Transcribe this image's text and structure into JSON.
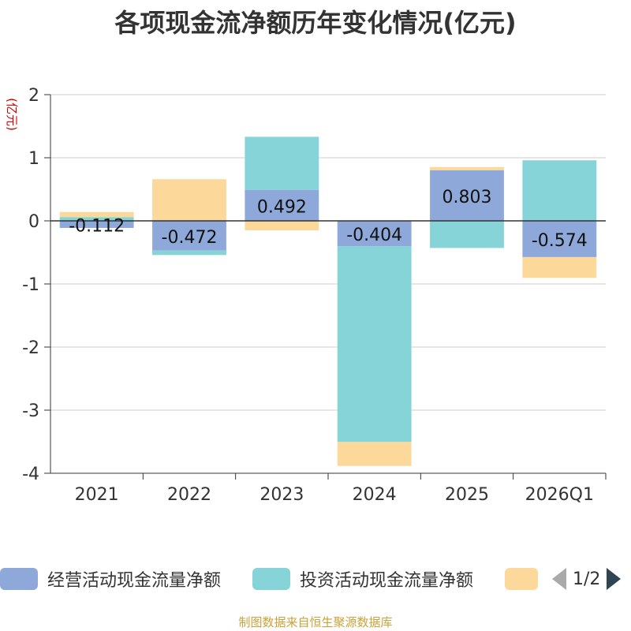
{
  "chart_data": {
    "type": "bar",
    "stacked": true,
    "title": "各项现金流净额历年变化情况(亿元)",
    "ylabel": "(亿元)",
    "xlabel": "",
    "ylim": [
      -4,
      2
    ],
    "yticks": [
      2,
      1,
      0,
      -1,
      -2,
      -3,
      -4
    ],
    "categories": [
      "2021",
      "2022",
      "2023",
      "2024",
      "2025",
      "2026Q1"
    ],
    "series": [
      {
        "name": "经营活动现金流量净额",
        "color": "#8ea9d9",
        "values": [
          -0.112,
          -0.472,
          0.492,
          -0.404,
          0.803,
          -0.574
        ],
        "show_labels": true
      },
      {
        "name": "投资活动现金流量净额",
        "color": "#86d4d7",
        "values": [
          0.06,
          -0.07,
          0.84,
          -3.1,
          -0.43,
          0.96
        ],
        "show_labels": false
      },
      {
        "name": "",
        "color": "#fdd89b",
        "values": [
          0.08,
          0.66,
          -0.15,
          -0.38,
          0.05,
          -0.33
        ],
        "show_labels": false
      }
    ],
    "data_labels": [
      "-0.112",
      "-0.472",
      "0.492",
      "-0.404",
      "0.803",
      "-0.574"
    ],
    "legend_position": "bottom"
  },
  "legend": {
    "page_text": "1/2"
  },
  "source_text": "制图数据来自恒生聚源数据库"
}
